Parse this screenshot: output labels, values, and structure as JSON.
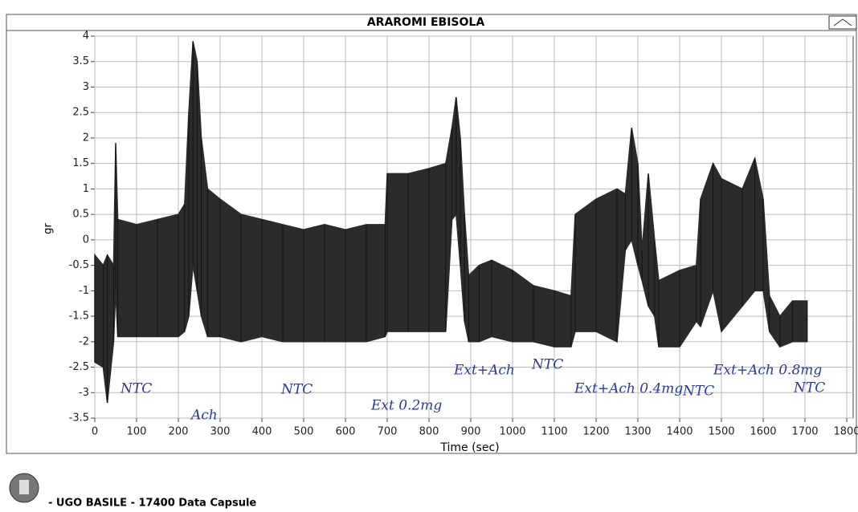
{
  "chart_data": {
    "type": "band",
    "title": "ARAROMI EBISOLA",
    "x_label": "Time (sec)",
    "y_label": "gr",
    "x": [
      0,
      20,
      30,
      45,
      50,
      55,
      100,
      150,
      200,
      215,
      225,
      235,
      245,
      255,
      270,
      300,
      350,
      400,
      450,
      500,
      550,
      600,
      650,
      695,
      700,
      750,
      800,
      840,
      855,
      865,
      875,
      885,
      895,
      920,
      950,
      1000,
      1050,
      1100,
      1140,
      1150,
      1200,
      1250,
      1270,
      1285,
      1300,
      1310,
      1325,
      1340,
      1350,
      1400,
      1440,
      1450,
      1480,
      1500,
      1550,
      1580,
      1600,
      1615,
      1640,
      1670,
      1705
    ],
    "high": [
      -0.3,
      -0.5,
      -0.3,
      -0.5,
      1.9,
      0.4,
      0.3,
      0.4,
      0.5,
      0.7,
      2.5,
      3.9,
      3.5,
      2.0,
      1.0,
      0.8,
      0.5,
      0.4,
      0.3,
      0.2,
      0.3,
      0.2,
      0.3,
      0.3,
      1.3,
      1.3,
      1.4,
      1.5,
      2.2,
      2.8,
      2.0,
      0.5,
      -0.7,
      -0.5,
      -0.4,
      -0.6,
      -0.9,
      -1.0,
      -1.1,
      0.5,
      0.8,
      1.0,
      0.9,
      2.2,
      1.5,
      -0.2,
      1.3,
      0.0,
      -0.8,
      -0.6,
      -0.5,
      0.8,
      1.5,
      1.2,
      1.0,
      1.6,
      0.8,
      -1.1,
      -1.5,
      -1.2,
      -1.2
    ],
    "low": [
      -2.4,
      -2.5,
      -3.2,
      -2.0,
      -1.0,
      -1.9,
      -1.9,
      -1.9,
      -1.9,
      -1.8,
      -1.5,
      -0.5,
      -1.0,
      -1.5,
      -1.9,
      -1.9,
      -2.0,
      -1.9,
      -2.0,
      -2.0,
      -2.0,
      -2.0,
      -2.0,
      -1.9,
      -1.8,
      -1.8,
      -1.8,
      -1.8,
      0.4,
      0.5,
      -0.5,
      -1.6,
      -2.0,
      -2.0,
      -1.9,
      -2.0,
      -2.0,
      -2.1,
      -2.1,
      -1.8,
      -1.8,
      -2.0,
      -0.2,
      0.0,
      -0.5,
      -0.8,
      -1.3,
      -1.5,
      -2.1,
      -2.1,
      -1.6,
      -1.7,
      -1.0,
      -1.8,
      -1.3,
      -1.0,
      -1.0,
      -1.8,
      -2.1,
      -2.0,
      -2.0
    ],
    "color": "#2b2b2b",
    "xlim": [
      0,
      1800
    ],
    "xticks": [
      0,
      100,
      200,
      300,
      400,
      500,
      600,
      700,
      800,
      900,
      1000,
      1100,
      1200,
      1300,
      1400,
      1500,
      1600,
      1700,
      1800
    ],
    "ylim": [
      -3.5,
      4
    ],
    "yticks": [
      -3.5,
      -3,
      -2.5,
      -2,
      -1.5,
      -1,
      -0.5,
      0,
      0.5,
      1,
      1.5,
      2,
      2.5,
      3,
      3.5,
      4
    ],
    "grid": true,
    "annotations": [
      "NTC",
      "Ach",
      "NTC",
      "Ext 0.2mg",
      "Ext+Ach",
      "NTC",
      "Ext+Ach 0.4mg",
      "NTC",
      "Ext+Ach 0.8mg",
      "NTC"
    ]
  },
  "footer": "- UGO BASILE - 17400 Data Capsule"
}
